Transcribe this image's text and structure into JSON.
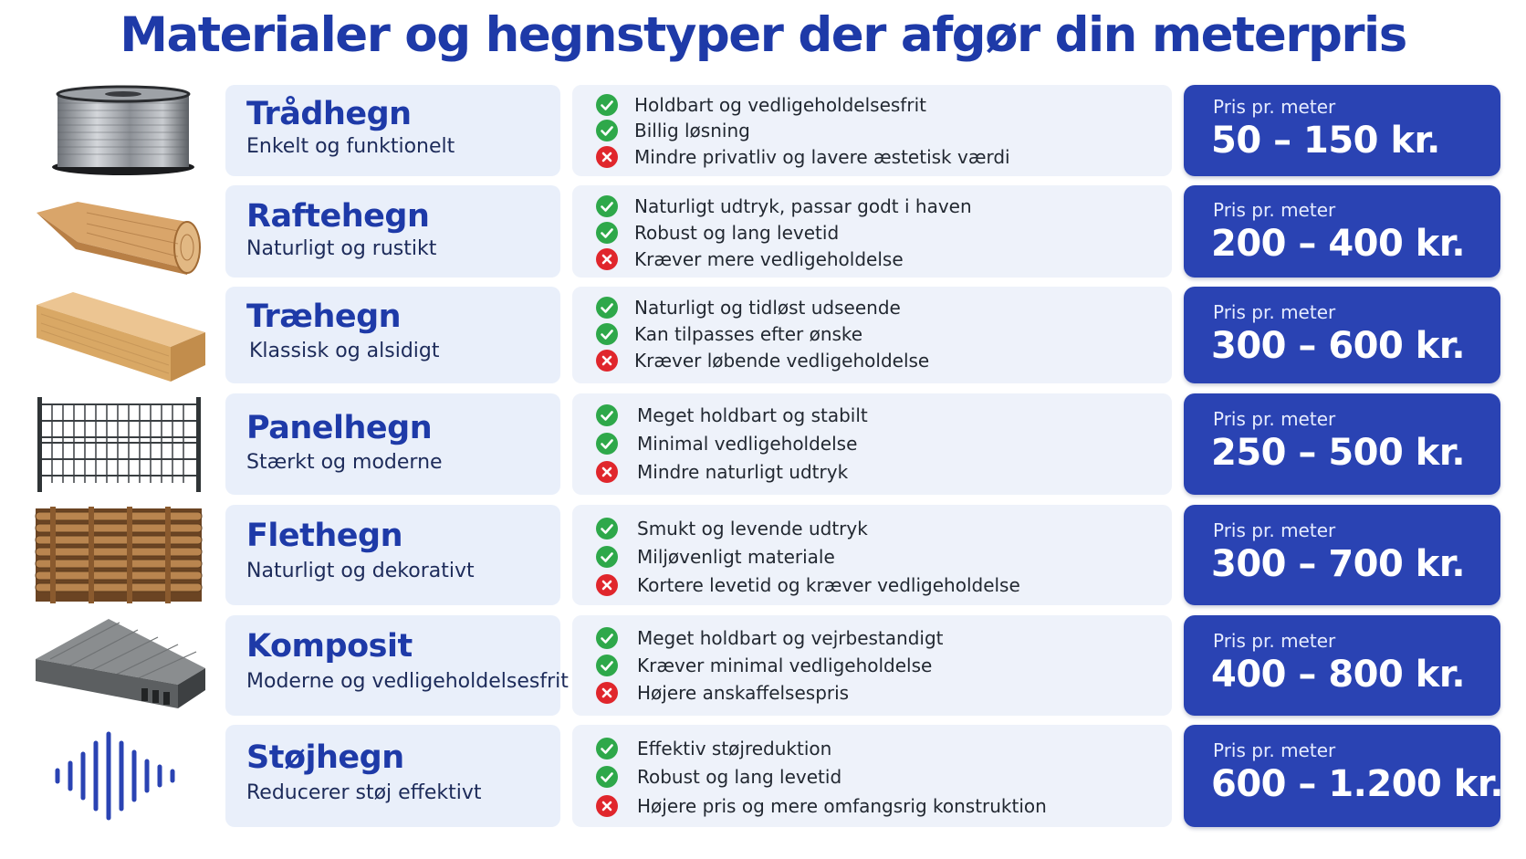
{
  "title": "Materialer og hegnstyper der afgør din meterpris",
  "colors": {
    "title": "#1e3aa8",
    "name_box": "#e9effa",
    "feature_box": "#eef2fa",
    "price_box": "#2a43b3",
    "pro_icon": "#2ea84a",
    "con_icon": "#e0262c"
  },
  "rows": [
    {
      "image": "wire-spool-image",
      "name": "Trådhegn",
      "subtitle": "Enkelt og funktionelt",
      "features": [
        {
          "type": "pro",
          "icon": "check-icon",
          "text": "Holdbart og vedligeholdelsesfrit"
        },
        {
          "type": "pro",
          "icon": "check-icon",
          "text": "Billig løsning"
        },
        {
          "type": "con",
          "icon": "cross-icon",
          "text": "Mindre privatliv og lavere æstetisk værdi"
        }
      ],
      "price_label": "Pris pr. meter",
      "price": "50 – 150 kr."
    },
    {
      "image": "wooden-stake-image",
      "name": "Raftehegn",
      "subtitle": "Naturligt og rustikt",
      "features": [
        {
          "type": "pro",
          "icon": "check-icon",
          "text": "Naturligt udtryk, passar godt i haven"
        },
        {
          "type": "pro",
          "icon": "check-icon",
          "text": "Robust og lang levetid"
        },
        {
          "type": "con",
          "icon": "cross-icon",
          "text": "Kræver mere vedligeholdelse"
        }
      ],
      "price_label": "Pris pr. meter",
      "price": "200 – 400 kr."
    },
    {
      "image": "timber-beam-image",
      "name": "Træhegn",
      "subtitle": "Klassisk og alsidigt",
      "features": [
        {
          "type": "pro",
          "icon": "check-icon",
          "text": "Naturligt og tidløst udseende"
        },
        {
          "type": "pro",
          "icon": "check-icon",
          "text": "Kan tilpasses efter ønske"
        },
        {
          "type": "con",
          "icon": "cross-icon",
          "text": "Kræver løbende vedligeholdelse"
        }
      ],
      "price_label": "Pris pr. meter",
      "price": "300 – 600 kr."
    },
    {
      "image": "mesh-panel-image",
      "name": "Panelhegn",
      "subtitle": "Stærkt og moderne",
      "features": [
        {
          "type": "pro",
          "icon": "check-icon",
          "text": "Meget holdbart og stabilt"
        },
        {
          "type": "pro",
          "icon": "check-icon",
          "text": "Minimal vedligeholdelse"
        },
        {
          "type": "con",
          "icon": "cross-icon",
          "text": "Mindre naturligt udtryk"
        }
      ],
      "price_label": "Pris pr. meter",
      "price": "250 – 500 kr."
    },
    {
      "image": "woven-fence-image",
      "name": "Flethegn",
      "subtitle": "Naturligt og dekorativt",
      "features": [
        {
          "type": "pro",
          "icon": "check-icon",
          "text": "Smukt og levende udtryk"
        },
        {
          "type": "pro",
          "icon": "check-icon",
          "text": "Miljøvenligt materiale"
        },
        {
          "type": "con",
          "icon": "cross-icon",
          "text": "Kortere levetid og kræver vedligeholdelse"
        }
      ],
      "price_label": "Pris pr. meter",
      "price": "300 – 700 kr."
    },
    {
      "image": "composite-board-image",
      "name": "Komposit",
      "subtitle": "Moderne og vedligeholdelsesfrit",
      "features": [
        {
          "type": "pro",
          "icon": "check-icon",
          "text": "Meget holdbart og vejrbestandigt"
        },
        {
          "type": "pro",
          "icon": "check-icon",
          "text": "Kræver minimal vedligeholdelse"
        },
        {
          "type": "con",
          "icon": "cross-icon",
          "text": "Højere anskaffelsespris"
        }
      ],
      "price_label": "Pris pr. meter",
      "price": "400 – 800 kr."
    },
    {
      "image": "sound-wave-icon",
      "name": "Støjhegn",
      "subtitle": "Reducerer støj effektivt",
      "features": [
        {
          "type": "pro",
          "icon": "check-icon",
          "text": "Effektiv støjreduktion"
        },
        {
          "type": "pro",
          "icon": "check-icon",
          "text": "Robust og lang levetid"
        },
        {
          "type": "con",
          "icon": "cross-icon",
          "text": "Højere pris og mere omfangsrig konstruktion"
        }
      ],
      "price_label": "Pris pr. meter",
      "price": "600 – 1.200 kr."
    }
  ]
}
